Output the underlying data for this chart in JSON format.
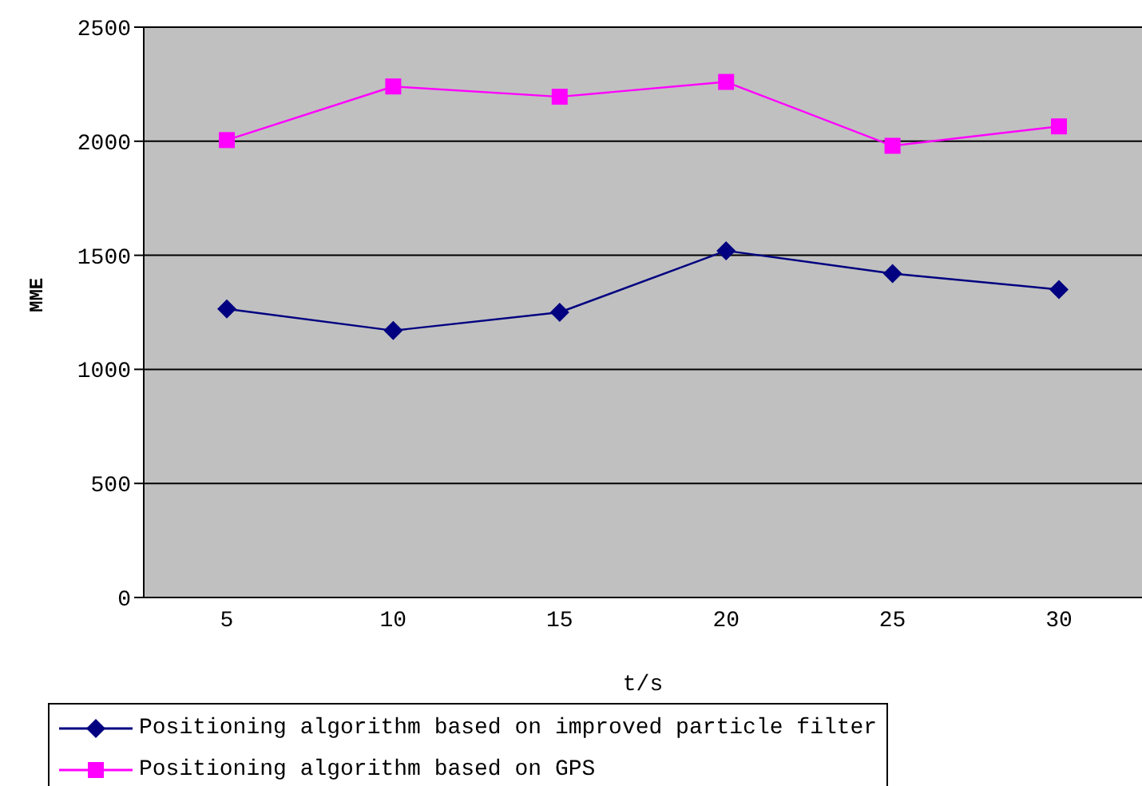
{
  "chart_data": {
    "type": "line",
    "xlabel": "t/s",
    "ylabel": "MME",
    "categories": [
      "5",
      "10",
      "15",
      "20",
      "25",
      "30"
    ],
    "series": [
      {
        "name": "Positioning algorithm based on improved particle filter",
        "color": "#000080",
        "marker": "diamond",
        "values": [
          1265,
          1170,
          1250,
          1520,
          1420,
          1350
        ]
      },
      {
        "name": "Positioning algorithm based on GPS",
        "color": "#ff00ff",
        "marker": "square",
        "values": [
          2005,
          2240,
          2195,
          2260,
          1980,
          2065
        ]
      }
    ],
    "ylim": [
      0,
      2500
    ],
    "yticks": [
      0,
      500,
      1000,
      1500,
      2000,
      2500
    ],
    "grid": "y",
    "legend": "bottom"
  }
}
